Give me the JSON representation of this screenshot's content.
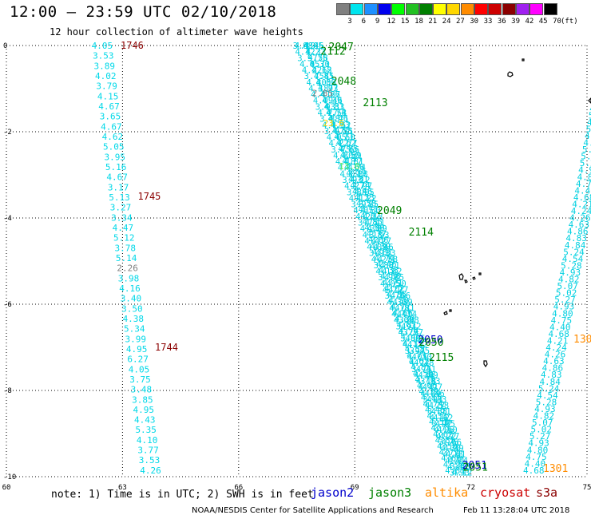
{
  "header": {
    "title": "12:00 — 23:59 UTC 02/10/2018",
    "subtitle": "12 hour collection of altimeter wave heights"
  },
  "legend": {
    "unit": "(ft)",
    "bins": [
      {
        "label": "3",
        "color": "#808080"
      },
      {
        "label": "6",
        "color": "#00e5ee"
      },
      {
        "label": "9",
        "color": "#1e90ff"
      },
      {
        "label": "12",
        "color": "#0000ee"
      },
      {
        "label": "15",
        "color": "#00ff00"
      },
      {
        "label": "18",
        "color": "#22c022"
      },
      {
        "label": "21",
        "color": "#008000"
      },
      {
        "label": "24",
        "color": "#ffff00"
      },
      {
        "label": "27",
        "color": "#ffd700"
      },
      {
        "label": "30",
        "color": "#ff8c00"
      },
      {
        "label": "33",
        "color": "#ff0000"
      },
      {
        "label": "36",
        "color": "#cd0000"
      },
      {
        "label": "39",
        "color": "#8b0000"
      },
      {
        "label": "42",
        "color": "#a020f0"
      },
      {
        "label": "45",
        "color": "#ff00ff"
      },
      {
        "label": "70",
        "color": "#000000"
      }
    ]
  },
  "axes": {
    "x_ticks": [
      "60",
      "63",
      "66",
      "69",
      "72",
      "75"
    ],
    "y_ticks": [
      "0",
      "-2",
      "-4",
      "-6",
      "-8",
      "-10"
    ]
  },
  "tracks": {
    "left_track_values": [
      "4.05",
      "3.53",
      "3.89",
      "4.02",
      "3.79",
      "4.15",
      "4.67",
      "3.65",
      "4.67",
      "4.62",
      "5.05",
      "3.95",
      "5.16",
      "4.67",
      "3.17",
      "5.13",
      "3.27",
      "3.34",
      "4.47",
      "5.12",
      "3.78",
      "5.14",
      "2.26",
      "3.98",
      "4.16",
      "3.40",
      "3.50",
      "4.38",
      "5.34",
      "3.99",
      "4.95",
      "6.27",
      "4.05",
      "3.75",
      "3.48",
      "3.85",
      "4.95",
      "4.43",
      "5.35",
      "4.10",
      "3.77",
      "3.53",
      "4.26"
    ],
    "left_track_times": [
      {
        "label": "1746",
        "lat": 0.0
      },
      {
        "label": "1745",
        "lat": -3.5
      },
      {
        "label": "1744",
        "lat": -7.0
      }
    ],
    "middle_track_times": [
      {
        "label": "2047",
        "lat": 0.0,
        "color": "#008000"
      },
      {
        "label": "2112",
        "lat": -0.1,
        "color": "#008000"
      },
      {
        "label": "2048",
        "lat": -0.8,
        "color": "#008000"
      },
      {
        "label": "2113",
        "lat": -1.3,
        "color": "#008000"
      },
      {
        "label": "2049",
        "lat": -3.8,
        "color": "#008000"
      },
      {
        "label": "2114",
        "lat": -4.3,
        "color": "#008000"
      },
      {
        "label": "2050",
        "lat": -6.8,
        "color": "#0000cc"
      },
      {
        "label": "2050",
        "lat": -6.85,
        "color": "#008000"
      },
      {
        "label": "2115",
        "lat": -7.2,
        "color": "#008000"
      },
      {
        "label": "2051",
        "lat": -9.7,
        "color": "#0000cc"
      },
      {
        "label": "2051",
        "lat": -9.75,
        "color": "#008000"
      }
    ],
    "middle_special_values": [
      {
        "label": "4.19",
        "lat": 0.0
      },
      {
        "label": "2.85",
        "lat": -1.1
      },
      {
        "label": "23.6",
        "lat": -1.8
      },
      {
        "label": "13.0",
        "lat": -2.8
      }
    ],
    "right_track_values": [
      "4.68",
      "4.40",
      "4.75",
      "4.80",
      "4.93",
      "5.27",
      "5.02",
      "5.07",
      "4.82",
      "4.93",
      "5.28",
      "4.54",
      "5.24",
      "4.84",
      "4.83",
      "4.86",
      "4.63",
      "4.26",
      "4.24",
      "4.21"
    ],
    "right_track_times": [
      {
        "label": "130",
        "lat": -6.8
      },
      {
        "label": "1301",
        "lat": -9.8
      }
    ]
  },
  "footer": {
    "note": "note: 1) Time is in UTC; 2) SWH is in feet",
    "satellites": [
      {
        "name": "jason2",
        "color": "#0000cc"
      },
      {
        "name": "jason3",
        "color": "#008000"
      },
      {
        "name": "altika",
        "color": "#ff8c00"
      },
      {
        "name": "cryosat",
        "color": "#cc0000"
      },
      {
        "name": "s3a",
        "color": "#8b0000"
      }
    ],
    "credit": "NOAA/NESDIS Center for Satellite Applications and Research",
    "timestamp": "Feb 11 13:28:04 UTC 2018"
  }
}
